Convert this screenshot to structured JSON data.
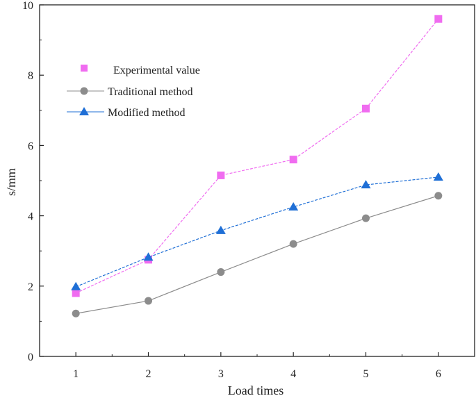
{
  "chart_data": {
    "type": "line",
    "title": "",
    "xlabel": "Load times",
    "ylabel": "s/mm",
    "categories": [
      "1",
      "2",
      "3",
      "4",
      "5",
      "6"
    ],
    "x": [
      1,
      2,
      3,
      4,
      5,
      6
    ],
    "xlim": [
      0.5,
      6.5
    ],
    "ylim": [
      0,
      10
    ],
    "yticks": [
      0,
      2,
      4,
      6,
      8,
      10
    ],
    "xticks": [
      1,
      2,
      3,
      4,
      5,
      6
    ],
    "grid": false,
    "legend_position": "top-left",
    "series": [
      {
        "name": "Experimental value",
        "marker": "square",
        "line": "dashed",
        "color": "#f06cf0",
        "values": [
          1.8,
          2.75,
          5.15,
          5.6,
          7.05,
          9.6
        ]
      },
      {
        "name": "Traditional method",
        "marker": "circle",
        "line": "solid",
        "color": "#8c8c8c",
        "values": [
          1.22,
          1.58,
          2.4,
          3.2,
          3.93,
          4.57
        ]
      },
      {
        "name": "Modified method",
        "marker": "triangle",
        "line": "dashed",
        "color": "#1f6fd6",
        "values": [
          1.98,
          2.82,
          3.58,
          4.25,
          4.88,
          5.1
        ]
      }
    ]
  }
}
